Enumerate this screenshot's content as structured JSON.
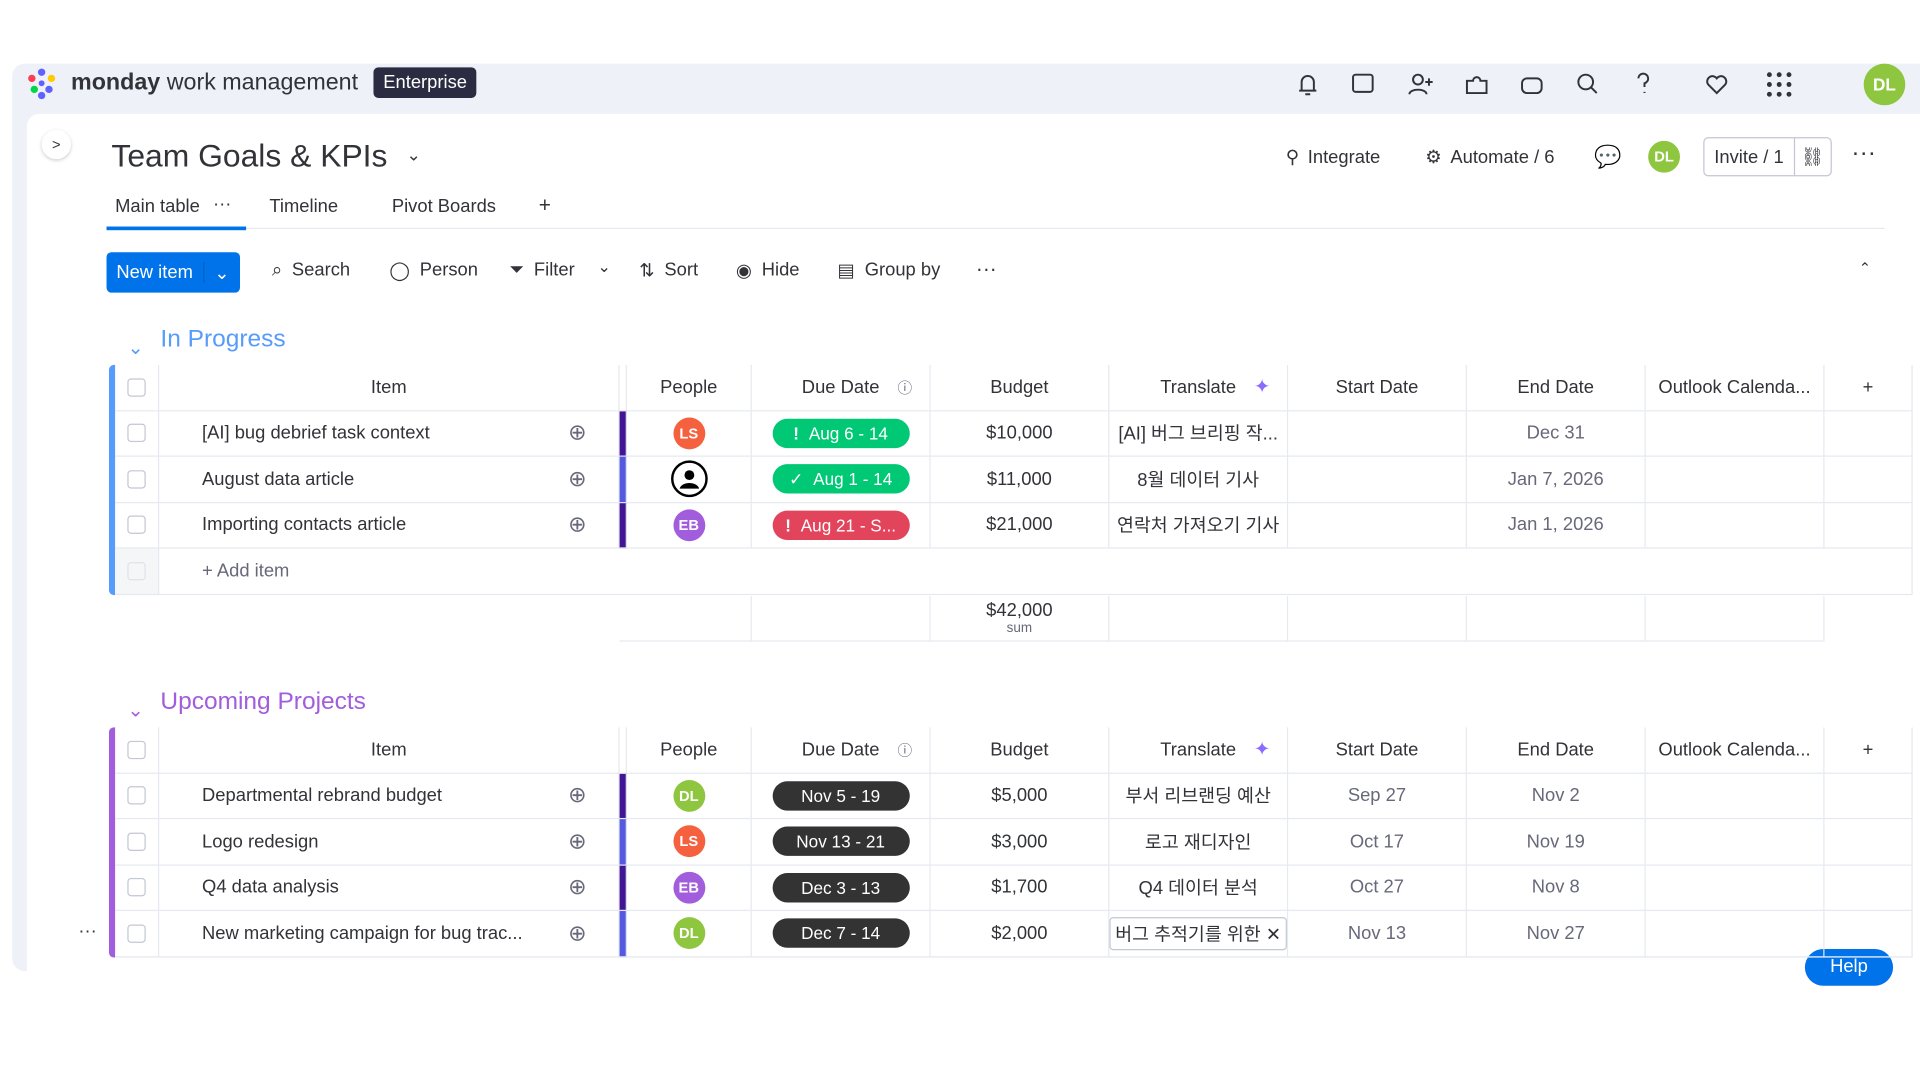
{
  "header": {
    "brand": "monday",
    "product": "work management",
    "plan": "Enterprise",
    "user": "DL"
  },
  "board": {
    "title": "Team Goals & KPIs",
    "integrate": "Integrate",
    "automate": "Automate / 6",
    "invite": "Invite / 1",
    "owner": "DL"
  },
  "tabs": [
    "Main table",
    "Timeline",
    "Pivot Boards"
  ],
  "toolbar": {
    "new_item": "New item",
    "search": "Search",
    "person": "Person",
    "filter": "Filter",
    "sort": "Sort",
    "hide": "Hide",
    "group_by": "Group by"
  },
  "columns": [
    "Item",
    "People",
    "Due Date",
    "Budget",
    "Translate",
    "Start Date",
    "End Date",
    "Outlook Calenda..."
  ],
  "groups": [
    {
      "name": "In Progress",
      "color": "#579bfc",
      "add_item": "+ Add item",
      "sum": "$42,000",
      "sum_label": "sum",
      "rows": [
        {
          "item": "[AI] bug debrief task context",
          "person": "LS",
          "person_color": "#f5603f",
          "due": "Aug 6 - 14",
          "due_color": "#00c875",
          "due_icon": "alert",
          "budget": "$10,000",
          "translate": "[AI] 버그 브리핑 작...",
          "start": null,
          "end": "Dec 31"
        },
        {
          "item": "August data article",
          "person": null,
          "person_color": "#000000",
          "due": "Aug 1 - 14",
          "due_color": "#00c875",
          "due_icon": "check",
          "budget": "$11,000",
          "translate": "8월 데이터 기사",
          "start": null,
          "end": "Jan 7, 2026"
        },
        {
          "item": "Importing contacts article",
          "person": "EB",
          "person_color": "#a25ddc",
          "due": "Aug 21 - S...",
          "due_color": "#e2445c",
          "due_icon": "alert",
          "budget": "$21,000",
          "translate": "연락처 가져오기 기사",
          "start": null,
          "end": "Jan 1, 2026"
        }
      ]
    },
    {
      "name": "Upcoming Projects",
      "color": "#a25ddc",
      "rows": [
        {
          "item": "Departmental rebrand budget",
          "person": "DL",
          "person_color": "#8fc640",
          "due": "Nov 5 - 19",
          "due_color": "#333333",
          "budget": "$5,000",
          "translate": "부서 리브랜딩 예산",
          "start": "Sep 27",
          "end": "Nov 2"
        },
        {
          "item": "Logo redesign",
          "person": "LS",
          "person_color": "#f5603f",
          "due": "Nov 13 - 21",
          "due_color": "#333333",
          "budget": "$3,000",
          "translate": "로고 재디자인",
          "start": "Oct 17",
          "end": "Nov 19"
        },
        {
          "item": "Q4 data analysis",
          "person": "EB",
          "person_color": "#a25ddc",
          "due": "Dec 3 - 13",
          "due_color": "#333333",
          "budget": "$1,700",
          "translate": "Q4 데이터 분석",
          "start": "Oct 27",
          "end": "Nov 8"
        },
        {
          "item": "New marketing campaign for bug trac...",
          "person": "DL",
          "person_color": "#8fc640",
          "due": "Dec 7 - 14",
          "due_color": "#333333",
          "budget": "$2,000",
          "translate": "버그 추적기를 위한",
          "start": "Nov 13",
          "end": "Nov 27"
        }
      ]
    }
  ],
  "help": "Help"
}
